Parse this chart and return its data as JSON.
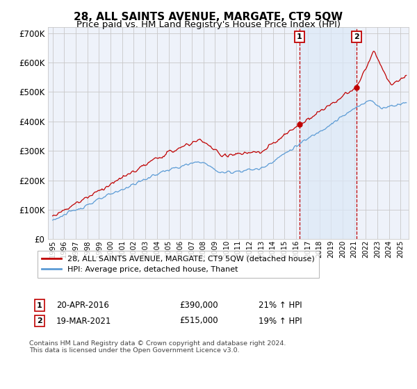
{
  "title": "28, ALL SAINTS AVENUE, MARGATE, CT9 5QW",
  "subtitle": "Price paid vs. HM Land Registry's House Price Index (HPI)",
  "ylim": [
    0,
    720000
  ],
  "yticks": [
    0,
    100000,
    200000,
    300000,
    400000,
    500000,
    600000,
    700000
  ],
  "legend_line1": "28, ALL SAINTS AVENUE, MARGATE, CT9 5QW (detached house)",
  "legend_line2": "HPI: Average price, detached house, Thanet",
  "footnote": "Contains HM Land Registry data © Crown copyright and database right 2024.\nThis data is licensed under the Open Government Licence v3.0.",
  "marker1_label": "1",
  "marker1_date": "20-APR-2016",
  "marker1_price": "£390,000",
  "marker1_hpi": "21% ↑ HPI",
  "marker1_year": 2016.29,
  "marker1_value": 390000,
  "marker2_label": "2",
  "marker2_date": "19-MAR-2021",
  "marker2_price": "£515,000",
  "marker2_hpi": "19% ↑ HPI",
  "marker2_year": 2021.21,
  "marker2_value": 515000,
  "hpi_color": "#5b9bd5",
  "price_color": "#c00000",
  "shade_color": "#dce9f7",
  "background_color": "#eef2fa",
  "grid_color": "#c8c8c8",
  "title_fontsize": 11,
  "subtitle_fontsize": 9.5,
  "xlim_left": 1994.6,
  "xlim_right": 2025.7
}
